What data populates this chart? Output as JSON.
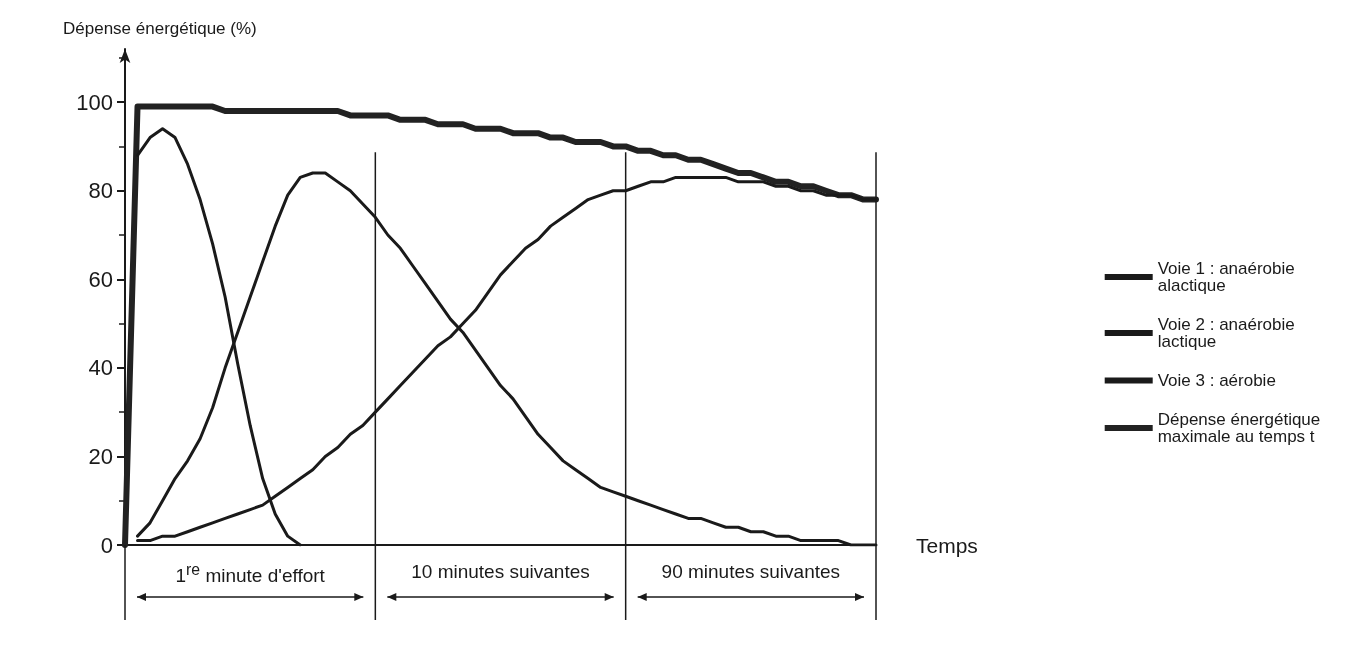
{
  "chart_data": {
    "type": "line",
    "ylabel": "Dépense énergétique (%)",
    "xlabel": "Temps",
    "categories": [
      null,
      null,
      null,
      null,
      null,
      null,
      null,
      null,
      null,
      null,
      null,
      null,
      null,
      null,
      null,
      null,
      null,
      null,
      null,
      null,
      null,
      null,
      null,
      null,
      null,
      null,
      null,
      null,
      null,
      null,
      null,
      null,
      null,
      null,
      null,
      null,
      null,
      null,
      null,
      null,
      null,
      null,
      null,
      null,
      null,
      null,
      null,
      null,
      null,
      null,
      null,
      null,
      null,
      null,
      null,
      null,
      null,
      null,
      null,
      null,
      null
    ],
    "series": [
      {
        "name": "Voie 1 : anaérobie alactique",
        "color": "#1a1a1a",
        "values": [
          null,
          88,
          92,
          94,
          92,
          86,
          78,
          68,
          56,
          41,
          27,
          15,
          7,
          2,
          0,
          null,
          null,
          null,
          null,
          null,
          null,
          null,
          null,
          null,
          null,
          null,
          null,
          null,
          null,
          null,
          null,
          null,
          null,
          null,
          null,
          null,
          null,
          null,
          null,
          null,
          null,
          null,
          null,
          null,
          null,
          null,
          null,
          null,
          null,
          null,
          null,
          null,
          null,
          null,
          null,
          null,
          null,
          null,
          null,
          null,
          null
        ]
      },
      {
        "name": "Voie 2 : anaérobie lactique",
        "color": "#1a1a1a",
        "values": [
          null,
          2,
          5,
          10,
          15,
          19,
          24,
          31,
          40,
          48,
          56,
          64,
          72,
          79,
          83,
          84,
          84,
          82,
          80,
          77,
          74,
          70,
          67,
          63,
          59,
          55,
          51,
          48,
          44,
          40,
          36,
          33,
          29,
          25,
          22,
          19,
          17,
          15,
          13,
          12,
          11,
          10,
          9,
          8,
          7,
          6,
          6,
          5,
          4,
          4,
          3,
          3,
          2,
          2,
          1,
          1,
          1,
          1,
          0,
          0,
          0
        ]
      },
      {
        "name": "Voie 3 : aérobie",
        "color": "#1a1a1a",
        "values": [
          null,
          1,
          1,
          2,
          2,
          3,
          4,
          5,
          6,
          7,
          8,
          9,
          11,
          13,
          15,
          17,
          20,
          22,
          25,
          27,
          30,
          33,
          36,
          39,
          42,
          45,
          47,
          50,
          53,
          57,
          61,
          64,
          67,
          69,
          72,
          74,
          76,
          78,
          79,
          80,
          80,
          81,
          82,
          82,
          83,
          83,
          83,
          83,
          83,
          82,
          82,
          82,
          81,
          81,
          80,
          80,
          79,
          79,
          79,
          78,
          78
        ]
      },
      {
        "name": "Dépense énergétique maximale au temps t",
        "color": "#222222",
        "values": [
          0,
          99,
          99,
          99,
          99,
          99,
          99,
          99,
          98,
          98,
          98,
          98,
          98,
          98,
          98,
          98,
          98,
          98,
          97,
          97,
          97,
          97,
          96,
          96,
          96,
          95,
          95,
          95,
          94,
          94,
          94,
          93,
          93,
          93,
          92,
          92,
          91,
          91,
          91,
          90,
          90,
          89,
          89,
          88,
          88,
          87,
          87,
          86,
          85,
          84,
          84,
          83,
          82,
          82,
          81,
          81,
          80,
          79,
          79,
          78,
          78
        ]
      }
    ],
    "ylim": [
      0,
      112
    ],
    "yticks": [
      0,
      20,
      40,
      60,
      80,
      100
    ],
    "annotations": [
      "1$^{re}$ minute d'effort",
      "10 minutes suivantes",
      "90 minutes suivantes"
    ],
    "legend": "right",
    "marker": "none",
    "tick_labels": "y"
  }
}
